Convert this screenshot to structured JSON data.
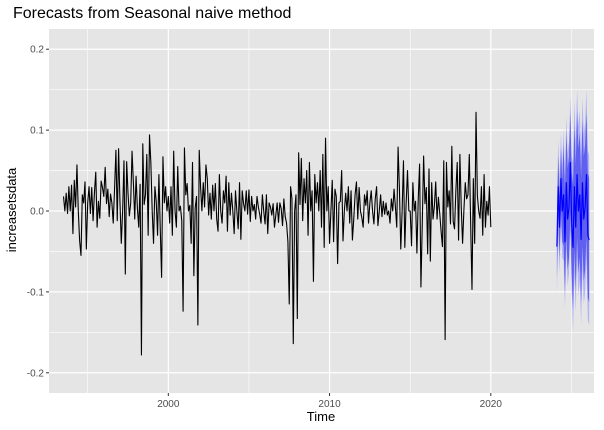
{
  "chart_data": {
    "type": "line",
    "title": "Forecasts from Seasonal naive method",
    "xlabel": "Time",
    "ylabel": "increasetsdata",
    "xlim": [
      1992.6,
      2026.4
    ],
    "ylim": [
      -0.225,
      0.225
    ],
    "x_ticks": [
      2000,
      2010,
      2020
    ],
    "x_tick_labels": [
      "2000",
      "2010",
      "2020"
    ],
    "y_ticks": [
      -0.2,
      -0.1,
      0.0,
      0.1,
      0.2
    ],
    "y_tick_labels": [
      "-0.2",
      "-0.1",
      "0.0",
      "0.1",
      "0.2"
    ],
    "grid": true,
    "colors": {
      "panel": "#e5e5e5",
      "grid": "#ffffff",
      "series": "#000000",
      "forecast": "#0000ff",
      "band80": "#5f5ff0",
      "band95": "#b3b3f7",
      "tick_label": "#4d4d4d"
    },
    "history": {
      "start": 1993.5,
      "frequency": 12,
      "values": [
        0.018,
        0.0,
        0.022,
        -0.003,
        0.03,
        0.0,
        0.032,
        -0.028,
        0.038,
        0.005,
        0.057,
        0.0,
        -0.037,
        -0.055,
        0.02,
        0.01,
        0.036,
        -0.047,
        0.01,
        0.03,
        -0.003,
        0.029,
        -0.012,
        0.022,
        0.048,
        -0.02,
        0.012,
        -0.009,
        0.037,
        0.029,
        0.018,
        0.054,
        0.009,
        0.027,
        -0.007,
        0.021,
        0.01,
        -0.015,
        0.028,
        0.075,
        -0.012,
        0.077,
        0.012,
        -0.04,
        0.0,
        0.062,
        -0.078,
        0.061,
        0.022,
        -0.006,
        0.01,
        0.074,
        0.035,
        -0.01,
        0.043,
        0.003,
        -0.02,
        0.033,
        -0.178,
        0.083,
        0.008,
        0.02,
        0.07,
        -0.03,
        0.094,
        0.06,
        0.0,
        -0.04,
        0.03,
        0.012,
        -0.03,
        0.045,
        -0.022,
        -0.082,
        0.067,
        0.01,
        0.03,
        0.0,
        0.018,
        -0.015,
        0.03,
        -0.03,
        0.074,
        0.0,
        -0.02,
        0.055,
        0.0,
        0.006,
        -0.012,
        -0.124,
        0.078,
        0.02,
        0.034,
        0.0,
        0.007,
        -0.04,
        0.06,
        -0.08,
        0.004,
        0.018,
        -0.141,
        0.075,
        0.03,
        0.0,
        0.035,
        0.005,
        0.057,
        0.04,
        -0.005,
        0.022,
        -0.01,
        0.032,
        0.0,
        0.034,
        -0.01,
        -0.025,
        0.045,
        0.0,
        -0.015,
        0.025,
        0.01,
        0.043,
        -0.025,
        0.035,
        -0.005,
        0.022,
        0.0,
        -0.028,
        0.025,
        0.0,
        -0.022,
        0.035,
        -0.035,
        0.025,
        0.009,
        0.0,
        0.025,
        -0.004,
        0.026,
        -0.013,
        0.018,
        0.0,
        0.008,
        -0.01,
        0.018,
        0.005,
        -0.004,
        -0.015,
        0.02,
        0.0,
        -0.016,
        0.02,
        -0.028,
        0.01,
        0.005,
        -0.005,
        0.009,
        -0.02,
        -0.005,
        0.01,
        -0.014,
        0.01,
        0.003,
        -0.018,
        0.015,
        -0.007,
        -0.015,
        -0.038,
        -0.115,
        0.03,
        0.015,
        -0.164,
        0.0,
        0.02,
        -0.133,
        0.072,
        0.008,
        0.065,
        -0.012,
        0.04,
        0.01,
        0.05,
        -0.03,
        0.06,
        0.0,
        0.025,
        -0.087,
        0.045,
        0.01,
        0.035,
        0.0,
        0.05,
        -0.02,
        0.07,
        -0.045,
        0.09,
        0.0,
        0.03,
        -0.04,
        0.0,
        0.038,
        -0.038,
        0.027,
        0.018,
        -0.065,
        0.01,
        0.012,
        0.05,
        -0.037,
        0.0,
        0.022,
        0.0,
        0.03,
        -0.015,
        0.025,
        -0.036,
        -0.01,
        0.02,
        0.036,
        -0.01,
        0.029,
        0.0,
        -0.008,
        -0.02,
        0.02,
        0.007,
        0.025,
        -0.015,
        0.01,
        0.025,
        0.0,
        -0.016,
        0.015,
        0.03,
        -0.018,
        0.0,
        0.02,
        -0.007,
        0.012,
        -0.004,
        0.01,
        -0.005,
        0.0,
        -0.015,
        0.015,
        0.0,
        0.027,
        0.005,
        -0.02,
        0.079,
        0.027,
        -0.047,
        0.0,
        0.062,
        -0.045,
        0.01,
        0.05,
        0.0,
        0.0,
        -0.043,
        0.035,
        0.0,
        0.012,
        -0.052,
        0.015,
        0.058,
        -0.094,
        -0.015,
        0.068,
        0.009,
        0.029,
        -0.053,
        0.052,
        -0.062,
        0.035,
        -0.01,
        0.006,
        0.036,
        -0.01,
        0.017,
        -0.003,
        -0.025,
        -0.044,
        0.062,
        -0.159,
        0.06,
        0.005,
        0.025,
        -0.016,
        0.08,
        -0.013,
        -0.022,
        0.025,
        0.06,
        -0.036,
        0.07,
        0.005,
        -0.04,
        0.002,
        0.035,
        0.015,
        0.02,
        0.07,
        -0.015,
        -0.097,
        0.04,
        -0.04,
        0.122,
        0.019,
        0.0,
        -0.009,
        0.03,
        -0.03,
        0.045,
        -0.02,
        0.012,
        -0.005,
        0.03,
        -0.02
      ]
    },
    "forecast": {
      "start": 2024.1,
      "frequency": 12,
      "mean": [
        -0.044,
        0.03,
        -0.02,
        0.04,
        0.0,
        0.02,
        -0.038,
        0.035,
        -0.01,
        0.005,
        0.06,
        -0.015,
        -0.045,
        0.03,
        -0.02,
        0.045,
        0.0,
        0.02,
        -0.035,
        0.035,
        -0.01,
        0.005,
        0.045,
        -0.03,
        -0.036
      ],
      "lo80": [
        -0.082,
        -0.008,
        -0.058,
        0.002,
        -0.038,
        -0.043,
        -0.101,
        -0.028,
        -0.073,
        -0.058,
        -0.003,
        -0.078,
        -0.122,
        -0.047,
        -0.097,
        -0.032,
        -0.077,
        -0.057,
        -0.112,
        -0.042,
        -0.087,
        -0.072,
        -0.032,
        -0.107,
        -0.113
      ],
      "hi80": [
        -0.006,
        0.068,
        0.018,
        0.078,
        0.038,
        0.083,
        0.025,
        0.098,
        0.053,
        0.068,
        0.123,
        0.048,
        0.032,
        0.107,
        0.057,
        0.122,
        0.077,
        0.097,
        0.042,
        0.112,
        0.067,
        0.082,
        0.122,
        0.047,
        0.041
      ],
      "lo95": [
        -0.102,
        -0.028,
        -0.078,
        -0.018,
        -0.058,
        -0.062,
        -0.12,
        -0.047,
        -0.092,
        -0.077,
        -0.022,
        -0.097,
        -0.15,
        -0.075,
        -0.125,
        -0.06,
        -0.105,
        -0.085,
        -0.14,
        -0.07,
        -0.115,
        -0.1,
        -0.06,
        -0.135,
        -0.141
      ],
      "hi95": [
        0.014,
        0.088,
        0.038,
        0.098,
        0.058,
        0.102,
        0.044,
        0.117,
        0.072,
        0.087,
        0.142,
        0.067,
        0.06,
        0.135,
        0.085,
        0.15,
        0.105,
        0.125,
        0.07,
        0.14,
        0.095,
        0.11,
        0.15,
        0.075,
        0.069
      ]
    }
  }
}
